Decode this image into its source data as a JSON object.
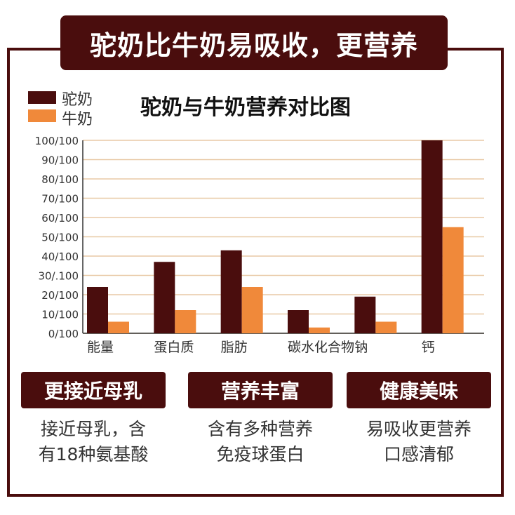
{
  "banner": {
    "title": "驼奶比牛奶易吸收，更营养"
  },
  "legend": {
    "items": [
      {
        "label": "驼奶",
        "color": "#4a0d0d"
      },
      {
        "label": "牛奶",
        "color": "#f0893a"
      }
    ]
  },
  "chart_data": {
    "type": "bar",
    "title": "驼奶与牛奶营养对比图",
    "categories": [
      "能量",
      "蛋白质",
      "脂肪",
      "碳水化合物",
      "钠",
      "钙"
    ],
    "series": [
      {
        "name": "驼奶",
        "values": [
          24,
          37,
          43,
          12,
          19,
          100
        ]
      },
      {
        "name": "牛奶",
        "values": [
          6,
          12,
          24,
          3,
          6,
          55
        ]
      }
    ],
    "ylim": [
      0,
      100
    ],
    "ytick_labels": [
      "0/100",
      "10/100",
      "20/100",
      "30/.100",
      "40/100",
      "50/100",
      "60/100",
      "70/100",
      "80/100",
      "90/100",
      "100/100"
    ],
    "grid": true,
    "legend_position": "top-left",
    "colors": {
      "camel": "#4a0d0d",
      "cow": "#f0893a",
      "grid": "#e8c9a6",
      "axis": "#333333"
    }
  },
  "features": [
    {
      "label": "更接近母乳",
      "lines": [
        "接近母乳，含",
        "有18种氨基酸"
      ]
    },
    {
      "label": "营养丰富",
      "lines": [
        "含有多种营养",
        "免疫球蛋白"
      ]
    },
    {
      "label": "健康美味",
      "lines": [
        "易吸收更营养",
        "口感清郁"
      ]
    }
  ]
}
